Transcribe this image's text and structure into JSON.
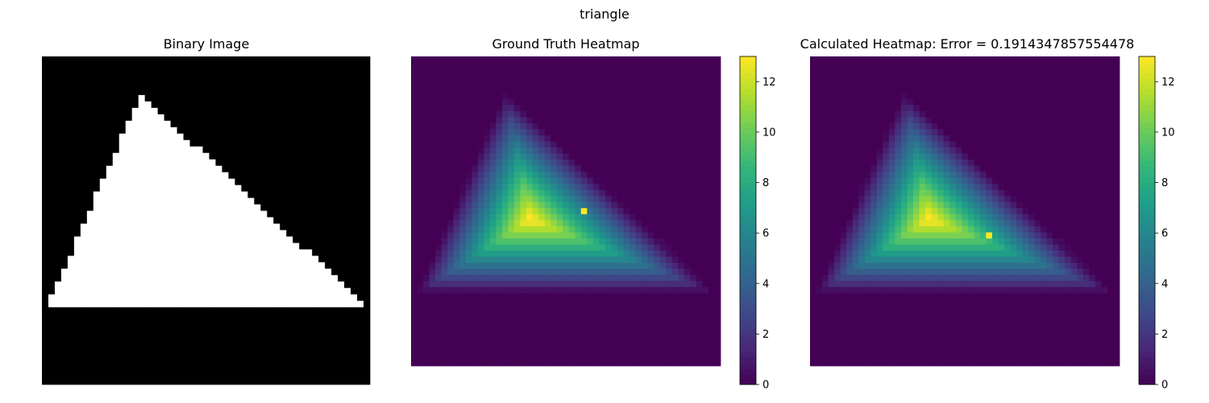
{
  "figure": {
    "suptitle": "triangle"
  },
  "chart_data": [
    {
      "type": "heatmap",
      "title": "Binary Image",
      "colormap": "gray",
      "grid_size": [
        51,
        51
      ],
      "shape": "triangle",
      "apex_cell": [
        6,
        15
      ],
      "base_row": 38,
      "base_col_range": [
        1,
        49
      ],
      "value_inside": 1,
      "value_outside": 0,
      "colorbar": false
    },
    {
      "type": "heatmap",
      "title": "Ground Truth Heatmap",
      "colormap": "viridis",
      "grid_size": [
        51,
        51
      ],
      "value_range": [
        0,
        13
      ],
      "peak_value": 13,
      "peak_cell": [
        25,
        28
      ],
      "colorbar": true,
      "colorbar_ticks": [
        "0",
        "2",
        "4",
        "6",
        "8",
        "10",
        "12"
      ]
    },
    {
      "type": "heatmap",
      "title": "Calculated Heatmap: Error = 0.1914347857554478",
      "colormap": "viridis",
      "grid_size": [
        51,
        51
      ],
      "value_range": [
        0,
        13
      ],
      "peak_value": 13,
      "peak_cell": [
        29,
        29
      ],
      "error": 0.1914347857554478,
      "colorbar": true,
      "colorbar_ticks": [
        "0",
        "2",
        "4",
        "6",
        "8",
        "10",
        "12"
      ]
    }
  ]
}
